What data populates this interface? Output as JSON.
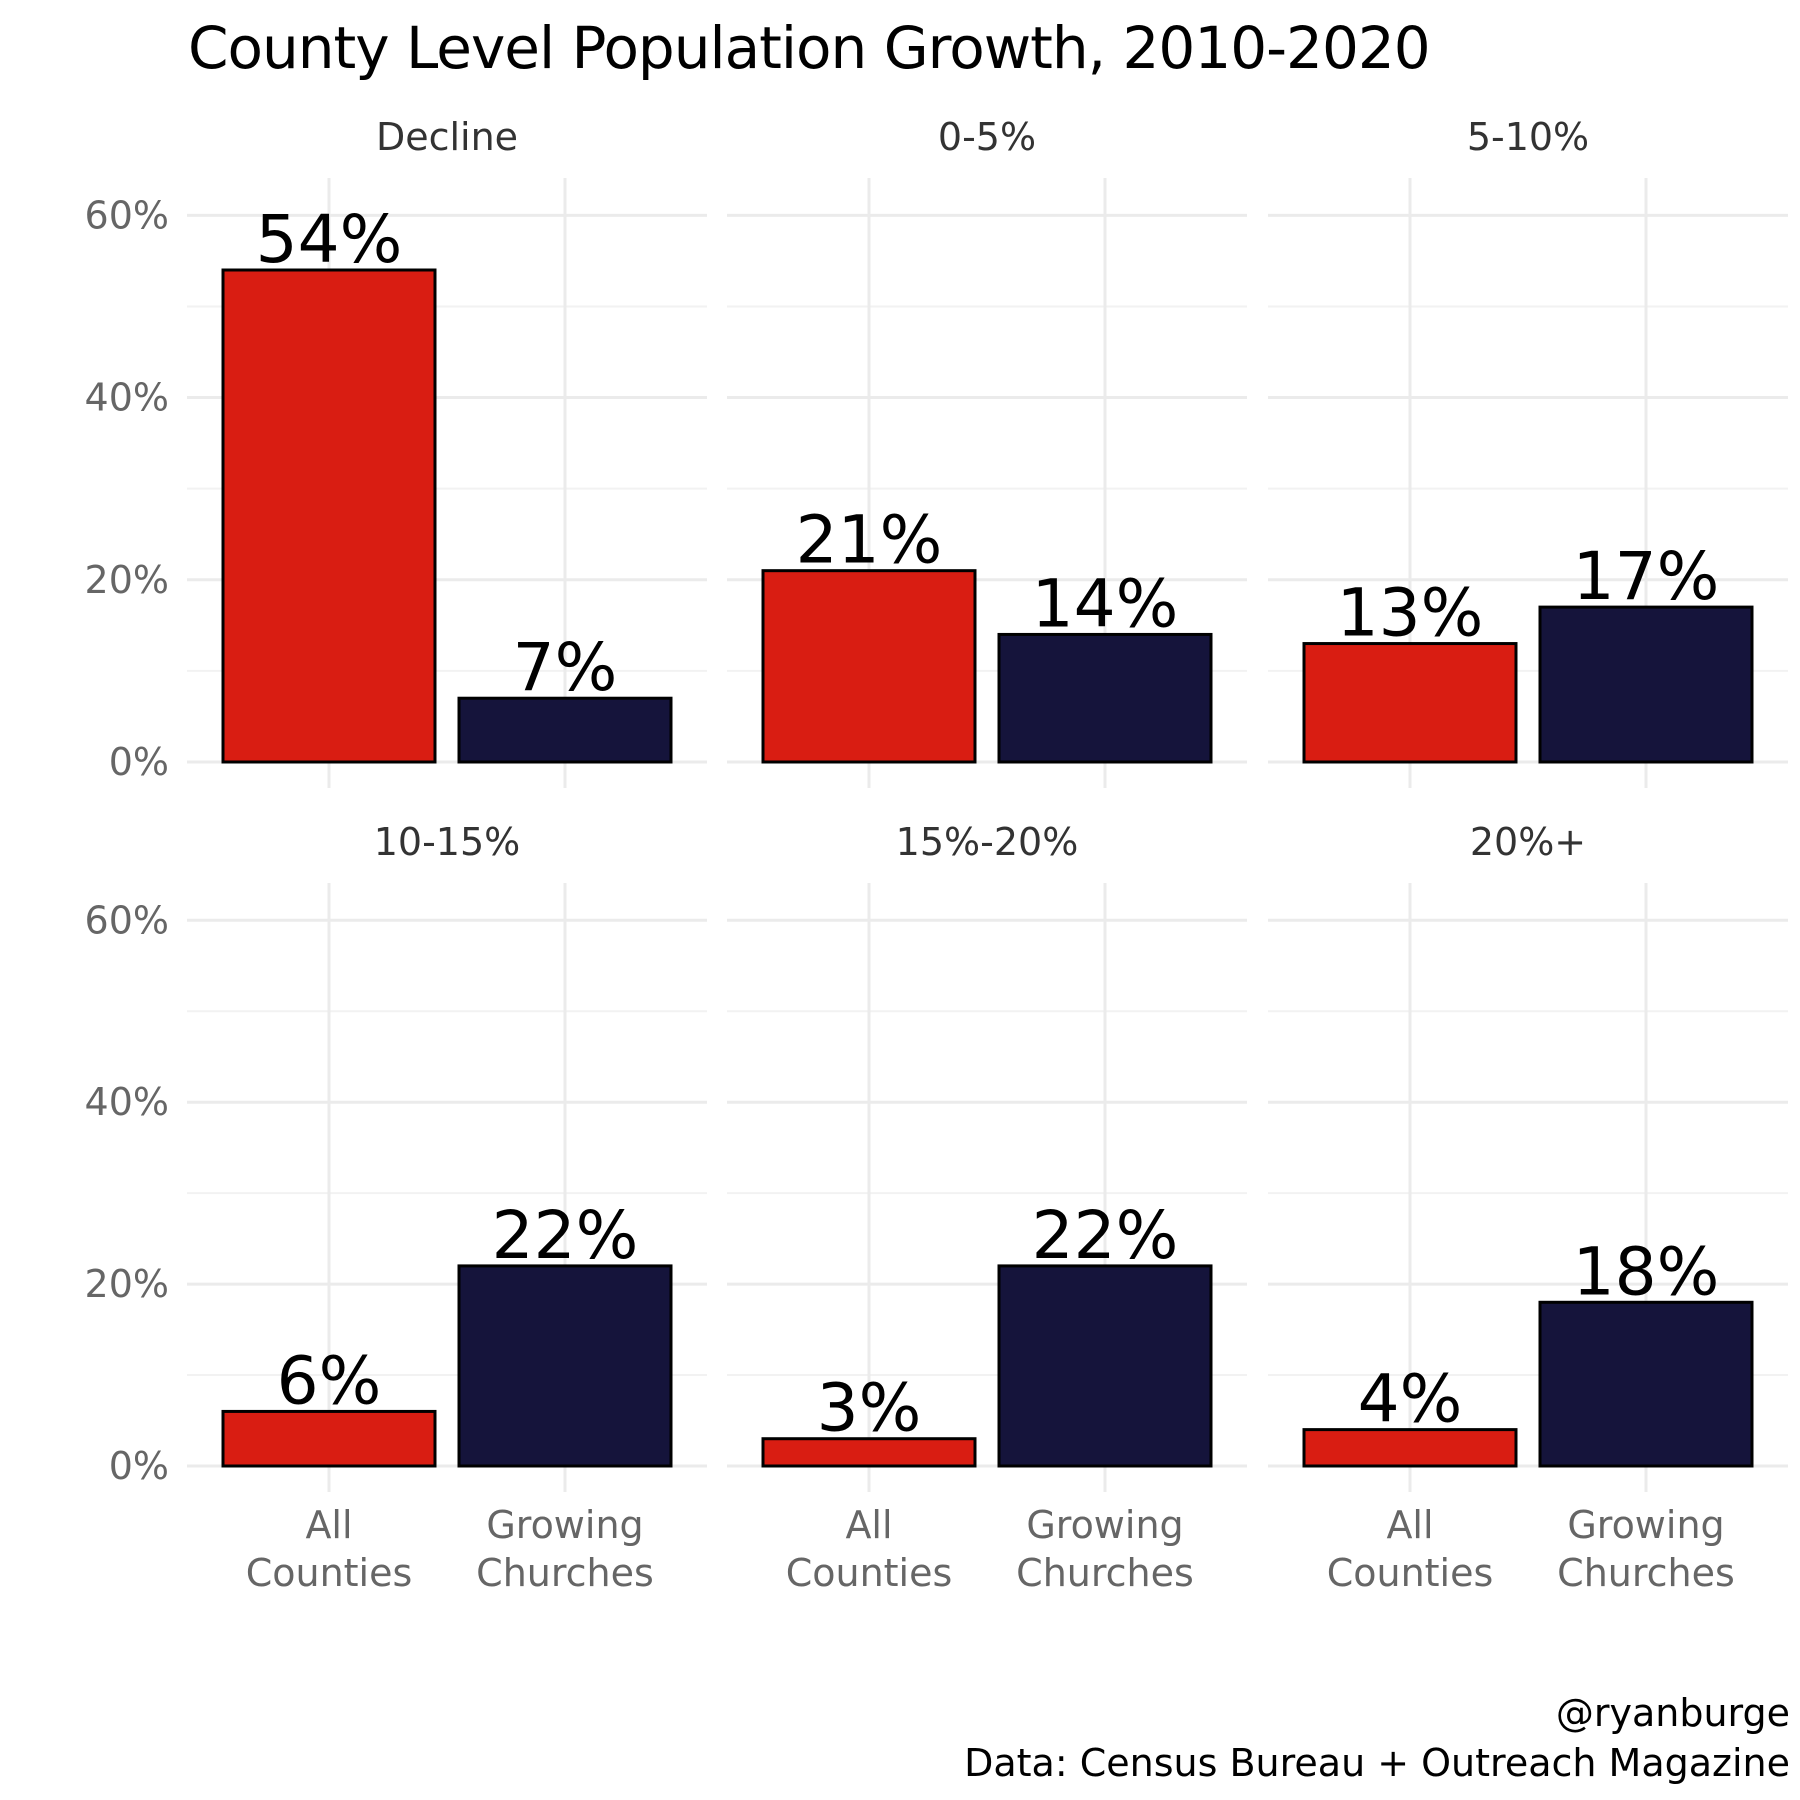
{
  "title": "County Level Population Growth, 2010-2020",
  "caption": {
    "handle": "@ryanburge",
    "source": "Data: Census Bureau + Outreach Magazine"
  },
  "colors": {
    "all_counties": "#d91d12",
    "growing_churches": "#15143b",
    "bar_outline": "#000000"
  },
  "chart_data": {
    "type": "bar",
    "title": "County Level Population Growth, 2010-2020",
    "categories": [
      "All Counties",
      "Growing Churches"
    ],
    "category_lines": [
      [
        "All",
        "Counties"
      ],
      [
        "Growing",
        "Churches"
      ]
    ],
    "ylim": [
      0,
      0.63
    ],
    "yticks": [
      0,
      0.2,
      0.4,
      0.6
    ],
    "ytick_labels": [
      "0%",
      "20%",
      "40%",
      "60%"
    ],
    "grid": true,
    "legend": "none",
    "panels": [
      {
        "name": "Decline",
        "values": [
          0.54,
          0.07
        ],
        "labels": [
          "54%",
          "7%"
        ]
      },
      {
        "name": "0-5%",
        "values": [
          0.21,
          0.14
        ],
        "labels": [
          "21%",
          "14%"
        ]
      },
      {
        "name": "5-10%",
        "values": [
          0.13,
          0.17
        ],
        "labels": [
          "13%",
          "17%"
        ]
      },
      {
        "name": "10-15%",
        "values": [
          0.06,
          0.22
        ],
        "labels": [
          "6%",
          "22%"
        ]
      },
      {
        "name": "15%-20%",
        "values": [
          0.03,
          0.22
        ],
        "labels": [
          "3%",
          "22%"
        ]
      },
      {
        "name": "20%+",
        "values": [
          0.04,
          0.18
        ],
        "labels": [
          "4%",
          "18%"
        ]
      }
    ]
  }
}
